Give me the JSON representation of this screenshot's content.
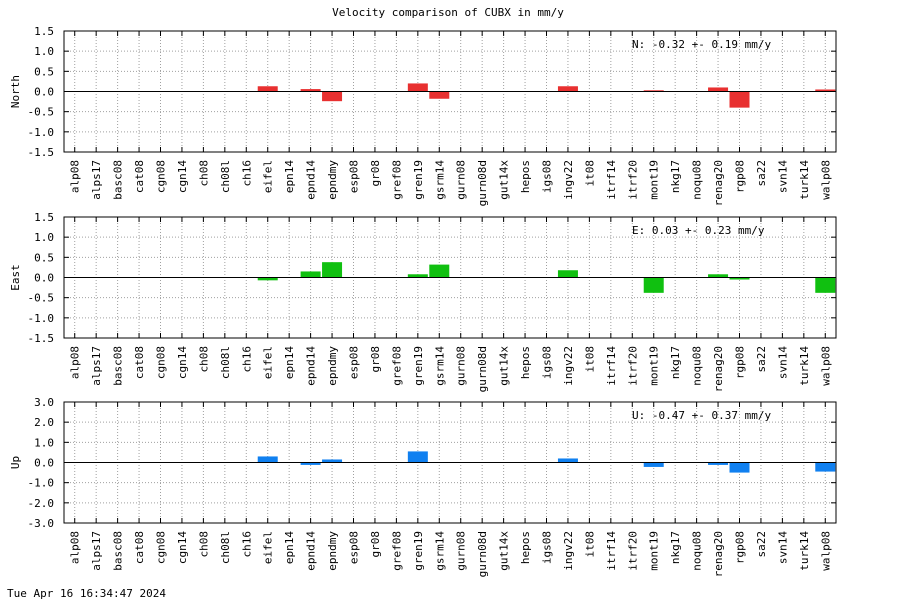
{
  "title": "Velocity comparison of CUBX in mm/y",
  "timestamp": "Tue Apr 16 16:34:47 2024",
  "chart_data": {
    "type": "bar",
    "categories": [
      "alp08",
      "alps17",
      "basc08",
      "cat08",
      "cgn08",
      "cgn14",
      "ch08",
      "ch08l",
      "ch16",
      "eifel",
      "epn14",
      "epnd14",
      "epndmy",
      "esp08",
      "gr08",
      "gref08",
      "gren19",
      "gsrm14",
      "gurn08",
      "gurn08d",
      "gut14x",
      "hepos",
      "igs08",
      "ingv22",
      "it08",
      "itrf14",
      "itrf20",
      "mont19",
      "nkg17",
      "noqu08",
      "renag20",
      "rgp08",
      "sa22",
      "svn14",
      "turk14",
      "walp08"
    ],
    "panels": [
      {
        "ylabel": "North",
        "ylim": [
          -1.5,
          1.5
        ],
        "yticks": [
          "-1.5",
          "-1.0",
          "-0.5",
          "0.0",
          "0.5",
          "1.0",
          "1.5"
        ],
        "color": "#e83030",
        "annotation": "N:  -0.32 +-  0.19 mm/y",
        "values": [
          0,
          0,
          0,
          0,
          0,
          0,
          0,
          0,
          0,
          0.13,
          0,
          0.06,
          -0.24,
          0,
          0,
          0,
          0.2,
          -0.18,
          0,
          0,
          0,
          0,
          0,
          0.13,
          0,
          0,
          0,
          0.03,
          0,
          0,
          0.1,
          -0.4,
          0,
          0,
          0,
          0.05
        ]
      },
      {
        "ylabel": "East",
        "ylim": [
          -1.5,
          1.5
        ],
        "yticks": [
          "-1.5",
          "-1.0",
          "-0.5",
          "0.0",
          "0.5",
          "1.0",
          "1.5"
        ],
        "color": "#10c010",
        "annotation": "E:   0.03 +-  0.23 mm/y",
        "values": [
          0,
          0,
          0,
          0,
          0,
          0,
          0,
          0,
          0,
          -0.07,
          0,
          0.15,
          0.38,
          0,
          0,
          0,
          0.08,
          0.32,
          0,
          0,
          0,
          0,
          0,
          0.18,
          0,
          0,
          0,
          -0.38,
          0,
          0,
          0.08,
          -0.05,
          0,
          0,
          0,
          -0.38
        ]
      },
      {
        "ylabel": "Up",
        "ylim": [
          -3.0,
          3.0
        ],
        "yticks": [
          "-3.0",
          "-2.0",
          "-1.0",
          "0.0",
          "1.0",
          "2.0",
          "3.0"
        ],
        "color": "#1080f0",
        "annotation": "U:  -0.47 +-  0.37 mm/y",
        "values": [
          0,
          0,
          0,
          0,
          0,
          0,
          0,
          0,
          0,
          0.3,
          0,
          -0.12,
          0.15,
          0,
          0,
          0,
          0.55,
          0,
          0,
          0,
          0,
          0,
          0,
          0.2,
          0,
          0,
          0,
          -0.22,
          0,
          0,
          -0.12,
          -0.5,
          0,
          0,
          0,
          -0.45
        ]
      }
    ]
  }
}
